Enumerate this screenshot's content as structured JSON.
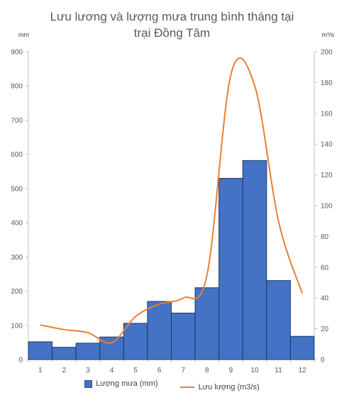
{
  "chart_data": {
    "type": "bar",
    "title_line1": "Lưu lương và lượng mưa  trung bình tháng tại",
    "title_line2": "trại Đồng Tâm",
    "left_unit": "mm",
    "right_unit": "m³/s",
    "categories": [
      "1",
      "2",
      "3",
      "4",
      "5",
      "6",
      "7",
      "8",
      "9",
      "10",
      "11",
      "12"
    ],
    "y_left_ticks": [
      "0",
      "100",
      "200",
      "300",
      "400",
      "500",
      "600",
      "700",
      "800",
      "900"
    ],
    "y_right_ticks": [
      "0",
      "20",
      "40",
      "60",
      "80",
      "100",
      "120",
      "140",
      "160",
      "180",
      "200"
    ],
    "ylim_left": [
      0,
      900
    ],
    "ylim_right": [
      0,
      200
    ],
    "grid": false,
    "legend_position": "bottom",
    "series": [
      {
        "name": "Lượng mưa (mm)",
        "type": "bar",
        "axis": "left",
        "color": "#4472c4",
        "values": [
          52,
          36,
          48,
          66,
          106,
          170,
          136,
          210,
          530,
          582,
          231,
          68
        ]
      },
      {
        "name": "Lưu lượng (m3/s)",
        "type": "line",
        "axis": "right",
        "color": "#ed7d31",
        "values": [
          22.5,
          19.5,
          17.5,
          11,
          28,
          36,
          40,
          55,
          185,
          178,
          90,
          43
        ]
      }
    ]
  }
}
